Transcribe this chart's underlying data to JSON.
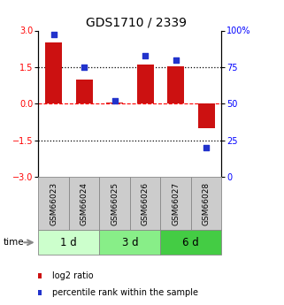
{
  "title": "GDS1710 / 2339",
  "samples": [
    "GSM66023",
    "GSM66024",
    "GSM66025",
    "GSM66026",
    "GSM66027",
    "GSM66028"
  ],
  "time_groups": [
    {
      "label": "1 d",
      "color": "#ccffcc",
      "start": 0,
      "end": 2
    },
    {
      "label": "3 d",
      "color": "#88ee88",
      "start": 2,
      "end": 4
    },
    {
      "label": "6 d",
      "color": "#44cc44",
      "start": 4,
      "end": 6
    }
  ],
  "log2_ratio": [
    2.5,
    1.0,
    0.05,
    1.6,
    1.55,
    -1.0
  ],
  "percentile_rank": [
    97,
    75,
    52,
    83,
    80,
    20
  ],
  "bar_color": "#cc1111",
  "dot_color": "#2233cc",
  "ylim_left": [
    -3,
    3
  ],
  "ylim_right": [
    0,
    100
  ],
  "yticks_left": [
    -3,
    -1.5,
    0,
    1.5,
    3
  ],
  "yticks_right": [
    0,
    25,
    50,
    75,
    100
  ],
  "legend_items": [
    {
      "label": "log2 ratio",
      "color": "#cc1111"
    },
    {
      "label": "percentile rank within the sample",
      "color": "#2233cc"
    }
  ],
  "background_color": "#ffffff",
  "sample_bg": "#cccccc",
  "bar_width": 0.55,
  "title_fontsize": 10,
  "tick_fontsize": 7,
  "sample_fontsize": 6.5,
  "time_fontsize": 8.5,
  "legend_fontsize": 7
}
